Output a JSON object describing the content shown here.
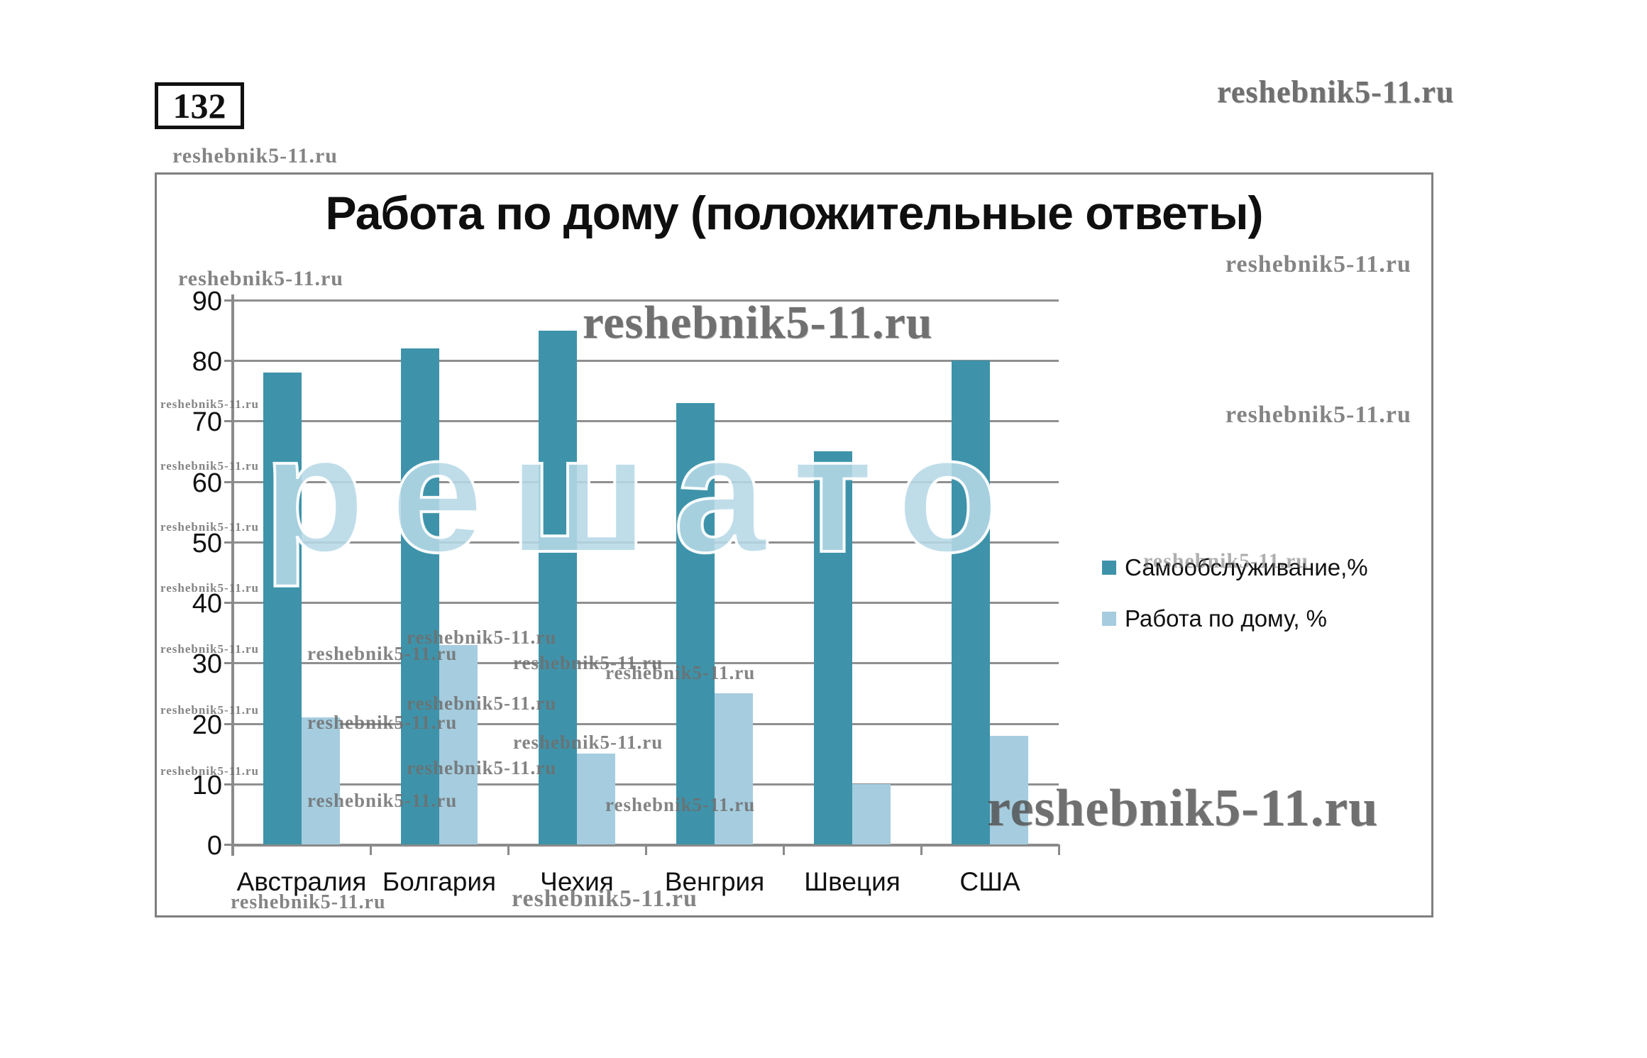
{
  "problem_number": "132",
  "watermark": {
    "text": "reshebnik5-11.ru",
    "big_overlay_word": "решато"
  },
  "chart_data": {
    "type": "bar",
    "title": "Работа по дому (положительные ответы)",
    "categories": [
      "Австралия",
      "Болгария",
      "Чехия",
      "Венгрия",
      "Швеция",
      "США"
    ],
    "series": [
      {
        "name": "Самообслуживание,%",
        "color": "#3E93AA",
        "values": [
          78,
          82,
          85,
          73,
          65,
          80
        ]
      },
      {
        "name": "Работа по дому, %",
        "color": "#A5CDDF",
        "values": [
          21,
          33,
          15,
          25,
          10,
          18
        ]
      }
    ],
    "ylim": [
      0,
      90
    ],
    "ytick_step": 10,
    "grid": true,
    "legend_position": "right",
    "xlabel": "",
    "ylabel": ""
  },
  "colors": {
    "gridline": "#8f8f8f",
    "axis": "#8a8a8a",
    "frame_border": "#7f7f7f",
    "text": "#111111"
  }
}
